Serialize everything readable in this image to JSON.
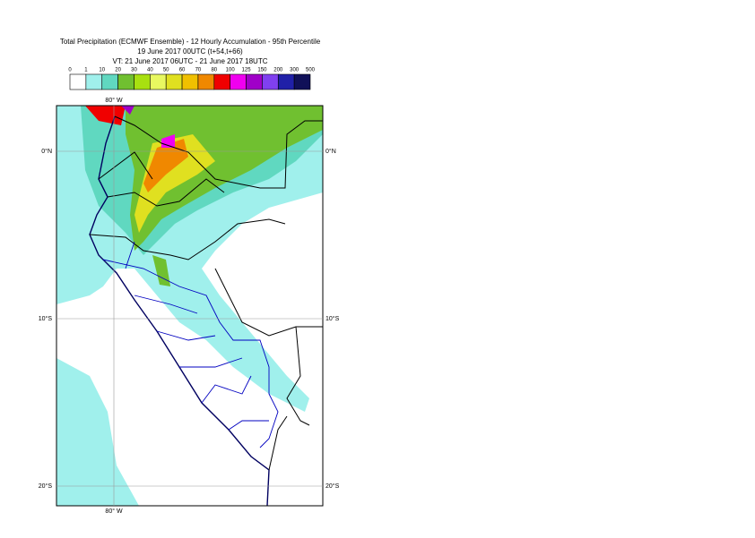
{
  "header": {
    "title_lines": [
      "Total Precipitation (ECMWF Ensemble) - 12 Hourly Accumulation - 95th Percentile",
      "19 June 2017 00UTC (t+54,t+66)",
      "VT: 21 June 2017 06UTC - 21 June 2017 18UTC"
    ]
  },
  "colorbar": {
    "levels": [
      0,
      1,
      10,
      20,
      30,
      40,
      50,
      60,
      70,
      80,
      100,
      125,
      150,
      200,
      300,
      500
    ],
    "colors": [
      "#ffffff",
      "#a0f0ec",
      "#60d8c0",
      "#70c030",
      "#a8e010",
      "#e8f860",
      "#e0e020",
      "#f0c000",
      "#f08800",
      "#f00000",
      "#f000f0",
      "#a000c8",
      "#8040f0",
      "#2020a8",
      "#101058"
    ]
  },
  "map": {
    "lon_labels": [
      "80° W",
      "80° W"
    ],
    "lat_labels": [
      "0°N",
      "0°N",
      "10°S",
      "10°S",
      "20°S",
      "20°S"
    ]
  }
}
